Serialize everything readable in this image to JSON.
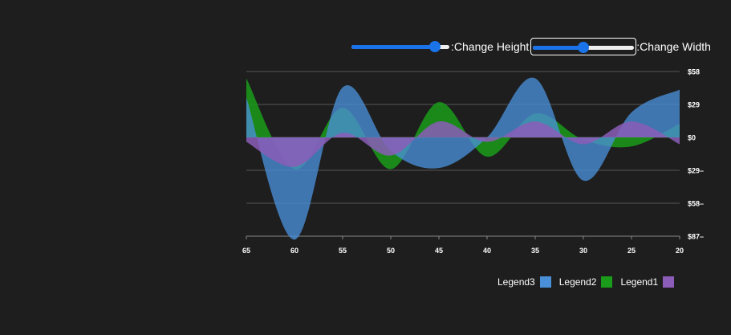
{
  "controls": {
    "height_label": ":Change Height",
    "width_label": ":Change Width",
    "height_value": 0.85,
    "width_value": 0.5
  },
  "chart_data": {
    "type": "area",
    "x": [
      65,
      60,
      55,
      50,
      45,
      40,
      35,
      30,
      25,
      20
    ],
    "xlim": [
      65,
      20
    ],
    "y_ticks": [
      "$58",
      "$29",
      "$0",
      "$29–",
      "$58–",
      "$87–"
    ],
    "y_tick_values": [
      58,
      29,
      0,
      -29,
      -58,
      -87
    ],
    "ylim": [
      -87,
      58
    ],
    "grid": true,
    "legend_position": "bottom-right",
    "series": [
      {
        "name": "Legend3",
        "color": "#4a90d9",
        "values": [
          35,
          -90,
          44,
          -12,
          -27,
          0,
          52,
          -38,
          22,
          42
        ]
      },
      {
        "name": "Legend2",
        "color": "#1a9c1a",
        "values": [
          52,
          -28,
          26,
          -28,
          31,
          -17,
          21,
          -2,
          -8,
          12
        ]
      },
      {
        "name": "Legend1",
        "color": "#8b5db8",
        "values": [
          -4,
          -26,
          4,
          -16,
          14,
          -4,
          14,
          -6,
          14,
          -6
        ]
      }
    ]
  }
}
